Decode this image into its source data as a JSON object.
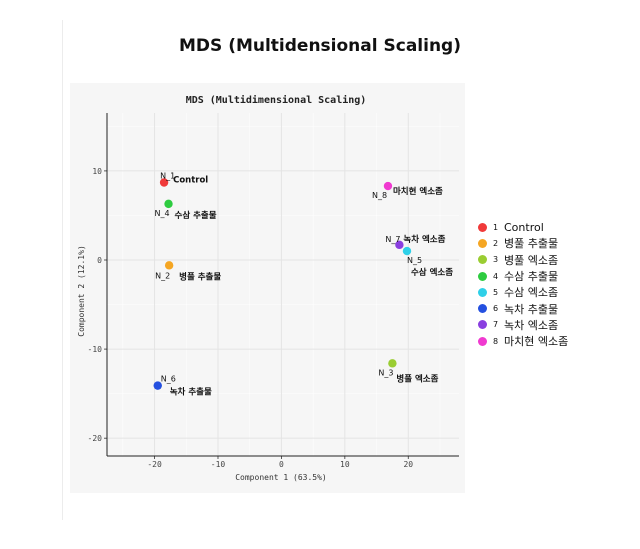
{
  "page_title": "MDS (Multidensional Scaling)",
  "colors": {
    "panel_bg": "#f6f6f6",
    "grid": "#ffffff",
    "axis": "#222222"
  },
  "chart_data": {
    "type": "scatter",
    "title": "MDS (Multidimensional Scaling)",
    "xlabel": "Component 1 (63.5%)",
    "ylabel": "Component 2 (12.1%)",
    "xlim": [
      -27.5,
      28
    ],
    "ylim": [
      -22,
      16.5
    ],
    "x_ticks": [
      -20,
      -10,
      0,
      10,
      20
    ],
    "y_ticks": [
      -20,
      -10,
      0,
      10
    ],
    "grid": true,
    "legend_position": "right",
    "points": [
      {
        "id": "N_1",
        "label": "Control",
        "num": "1",
        "x": -18.5,
        "y": 8.7,
        "color": "#f03a3a"
      },
      {
        "id": "N_2",
        "label": "병풀 추출물",
        "num": "2",
        "x": -17.7,
        "y": -0.6,
        "color": "#f5a623"
      },
      {
        "id": "N_3",
        "label": "병풀 엑소좀",
        "num": "3",
        "x": 17.5,
        "y": -11.6,
        "color": "#9acd32"
      },
      {
        "id": "N_4",
        "label": "수삼 추출물",
        "num": "4",
        "x": -17.8,
        "y": 6.3,
        "color": "#2ecc40"
      },
      {
        "id": "N_5",
        "label": "수삼 엑소좀",
        "num": "5",
        "x": 19.8,
        "y": 1.0,
        "color": "#2fd0e8"
      },
      {
        "id": "N_6",
        "label": "녹차 추출물",
        "num": "6",
        "x": -19.5,
        "y": -14.1,
        "color": "#2450e0"
      },
      {
        "id": "N_7",
        "label": "녹차 엑소좀",
        "num": "7",
        "x": 18.6,
        "y": 1.7,
        "color": "#8a3fe0"
      },
      {
        "id": "N_8",
        "label": "마치현 엑소좀",
        "num": "8",
        "x": 16.8,
        "y": 8.3,
        "color": "#f03ad0"
      }
    ]
  }
}
